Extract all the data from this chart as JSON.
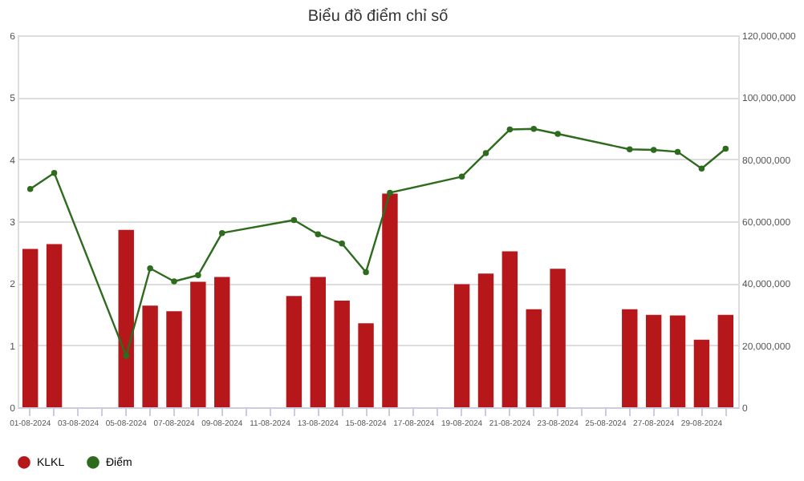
{
  "chart_data": {
    "type": "bar",
    "title": "Biểu đồ điểm chỉ số",
    "categories": [
      "01-08-2024",
      null,
      "03-08-2024",
      null,
      "05-08-2024",
      null,
      "07-08-2024",
      null,
      "09-08-2024",
      null,
      "11-08-2024",
      null,
      "13-08-2024",
      null,
      "15-08-2024",
      null,
      "17-08-2024",
      null,
      "19-08-2024",
      null,
      "21-08-2024",
      null,
      "23-08-2024",
      null,
      "25-08-2024",
      null,
      "27-08-2024",
      null,
      "29-08-2024",
      null
    ],
    "series": [
      {
        "name": "KLKL",
        "axis": "y2",
        "color": "#b5171b",
        "values": [
          51100000,
          52600000,
          null,
          null,
          57200000,
          32800000,
          31000000,
          40500000,
          42000000,
          null,
          null,
          35900000,
          42000000,
          34400000,
          27100000,
          68900000,
          null,
          null,
          39700000,
          43100000,
          50300000,
          31600000,
          44700000,
          null,
          null,
          31600000,
          29800000,
          29600000,
          21800000,
          29800000
        ]
      },
      {
        "name": "Điểm",
        "type": "line",
        "color": "#2e6b1e",
        "values": [
          3.52,
          3.78,
          null,
          null,
          0.83,
          2.24,
          2.03,
          2.13,
          2.81,
          null,
          null,
          3.02,
          2.79,
          2.64,
          2.18,
          3.46,
          null,
          null,
          3.72,
          4.1,
          4.48,
          4.49,
          4.41,
          null,
          null,
          4.16,
          4.15,
          4.12,
          3.85,
          4.17
        ]
      }
    ],
    "ylim": [
      0,
      6
    ],
    "yticks": [
      0,
      1,
      2,
      3,
      4,
      5,
      6
    ],
    "y2lim": [
      0,
      120000000
    ],
    "y2ticks": [
      0,
      {
        "value": 20000000,
        "label": "20,000,000"
      },
      {
        "value": 40000000,
        "label": "40,000,000"
      },
      {
        "value": 60000000,
        "label": "60,000,000"
      },
      {
        "value": 80000000,
        "label": "80,000,000"
      },
      {
        "value": 100000000,
        "label": "100,000,000"
      },
      {
        "value": 120000000,
        "label": "120,000,000"
      }
    ],
    "grid": "y",
    "legend": "bottom",
    "marker": "circle"
  }
}
